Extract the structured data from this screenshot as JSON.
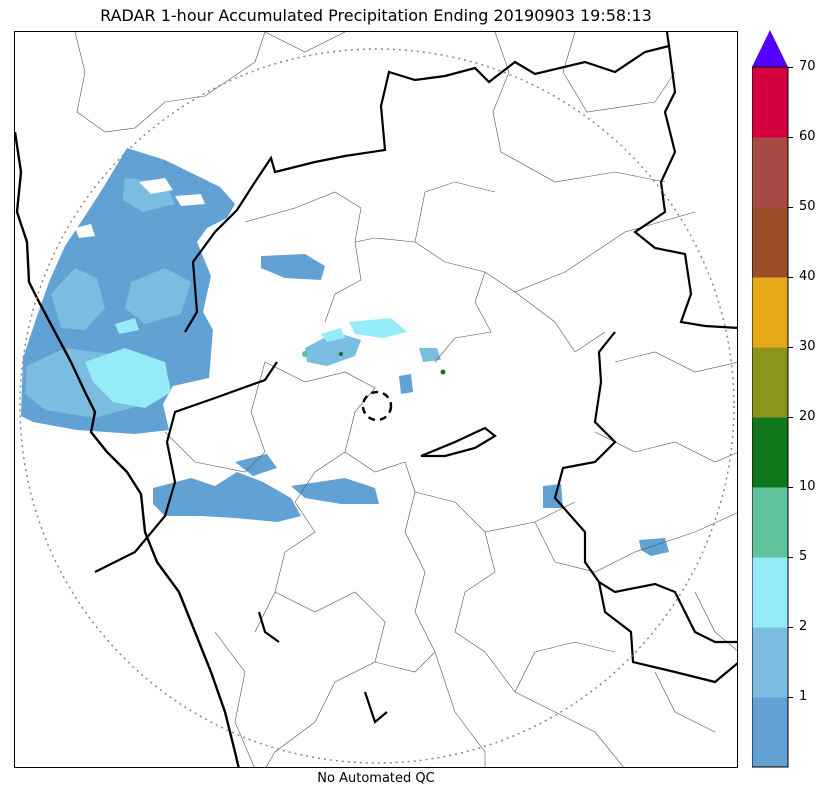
{
  "title": "RADAR 1-hour Accumulated Precipitation Ending 20190903 19:58:13",
  "footer_note": "No Automated QC",
  "colorbar": {
    "tick_labels": [
      "1",
      "2",
      "5",
      "10",
      "20",
      "30",
      "40",
      "50",
      "60",
      "70"
    ],
    "levels": [
      {
        "from": "0",
        "to": "1",
        "color": "#62a1d4"
      },
      {
        "from": "1",
        "to": "2",
        "color": "#7abde0"
      },
      {
        "from": "2",
        "to": "5",
        "color": "#96ebf8"
      },
      {
        "from": "5",
        "to": "10",
        "color": "#5fc29a"
      },
      {
        "from": "10",
        "to": "20",
        "color": "#10771c"
      },
      {
        "from": "20",
        "to": "30",
        "color": "#8c9517"
      },
      {
        "from": "30",
        "to": "40",
        "color": "#e6a918"
      },
      {
        "from": "40",
        "to": "50",
        "color": "#9a4e28"
      },
      {
        "from": "50",
        "to": "60",
        "color": "#a84a44"
      },
      {
        "from": "60",
        "to": "70",
        "color": "#d5003f"
      }
    ],
    "extend_color": "#5400ff"
  },
  "map": {
    "radar_range_ring": "dotted",
    "radar_site_marker": "dashed-circle",
    "coastline_color": "#000000",
    "state_border_color": "#000000",
    "district_border_color": "#555555",
    "range_ring_color": "#888888"
  }
}
